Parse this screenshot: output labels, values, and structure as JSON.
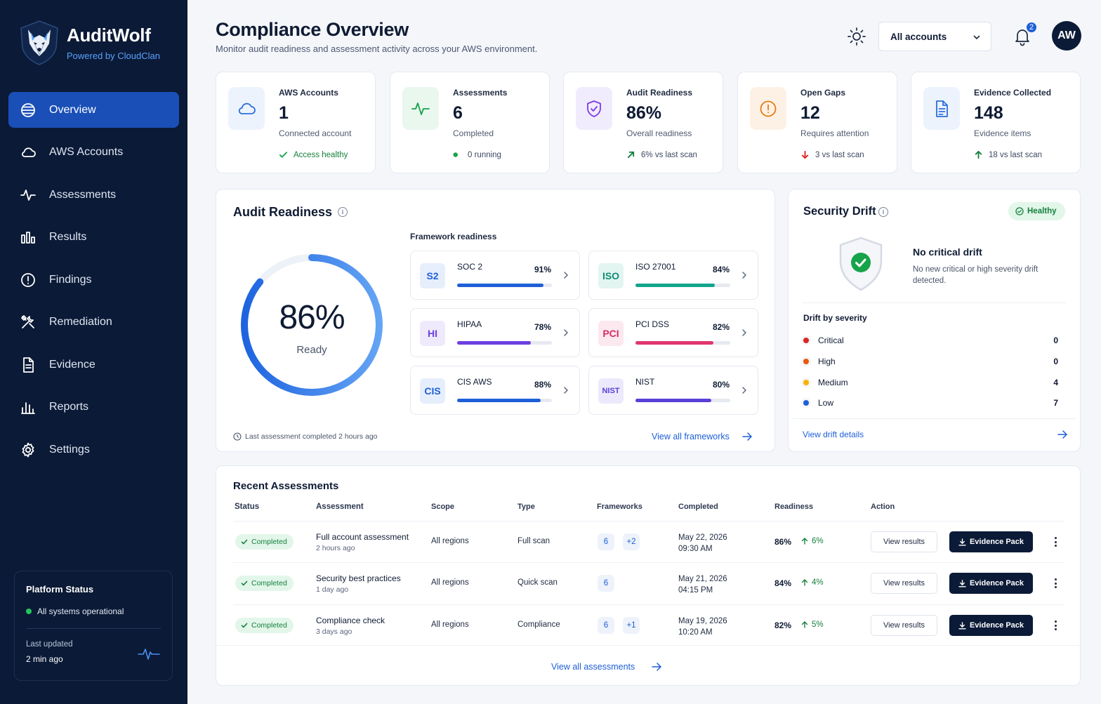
{
  "brand": {
    "name": "AuditWolf",
    "tagline": "Powered by CloudClan"
  },
  "nav": [
    {
      "label": "Overview",
      "icon": "globe-icon",
      "active": true
    },
    {
      "label": "AWS Accounts",
      "icon": "cloud-icon"
    },
    {
      "label": "Assessments",
      "icon": "activity-icon"
    },
    {
      "label": "Results",
      "icon": "bar-chart-icon"
    },
    {
      "label": "Findings",
      "icon": "alert-circle-icon"
    },
    {
      "label": "Remediation",
      "icon": "tools-icon"
    },
    {
      "label": "Evidence",
      "icon": "document-icon"
    },
    {
      "label": "Reports",
      "icon": "reports-icon"
    },
    {
      "label": "Settings",
      "icon": "gear-icon"
    }
  ],
  "platform_status": {
    "title": "Platform Status",
    "state": "All systems operational",
    "updated_label": "Last updated",
    "updated_value": "2 min ago"
  },
  "header": {
    "title": "Compliance Overview",
    "subtitle": "Monitor audit readiness and assessment activity across your AWS environment.",
    "account_select": "All accounts",
    "notification_count": "2",
    "avatar_initials": "AW"
  },
  "stats": [
    {
      "label": "AWS Accounts",
      "value": "1",
      "desc": "Connected account",
      "foot": "Access healthy",
      "icon": "cloud-icon",
      "foot_icon": "check-icon",
      "accent": "#2b6fdb",
      "bg": "#edf3fd"
    },
    {
      "label": "Assessments",
      "value": "6",
      "desc": "Completed",
      "foot": "0 running",
      "icon": "activity-icon",
      "foot_icon": "dot-icon",
      "accent": "#16a34a",
      "bg": "#e9f7ef"
    },
    {
      "label": "Audit Readiness",
      "value": "86%",
      "desc": "Overall readiness",
      "foot": "6% vs last scan",
      "icon": "shield-check-icon",
      "foot_icon": "arrow-up-right-icon",
      "accent": "#7c3aed",
      "bg": "#f1ecfd"
    },
    {
      "label": "Open Gaps",
      "value": "12",
      "desc": "Requires attention",
      "foot": "3 vs last scan",
      "icon": "alert-circle-icon",
      "foot_icon": "arrow-down-icon",
      "accent": "#ea7a13",
      "bg": "#fdf1e5"
    },
    {
      "label": "Evidence Collected",
      "value": "148",
      "desc": "Evidence items",
      "foot": "18 vs last scan",
      "icon": "document-icon",
      "foot_icon": "arrow-up-icon",
      "accent": "#2b6fdb",
      "bg": "#edf3fd"
    }
  ],
  "audit_readiness": {
    "title": "Audit Readiness",
    "value": "86%",
    "percent": 86,
    "label": "Ready",
    "frameworks_heading": "Framework readiness",
    "frameworks": [
      {
        "badge": "S2",
        "name": "SOC 2",
        "pct": "91%",
        "value": 91,
        "color": "#1e5fd8",
        "badge_bg": "#e6eefc",
        "badge_fg": "#1e5fd8"
      },
      {
        "badge": "ISO",
        "name": "ISO 27001",
        "pct": "84%",
        "value": 84,
        "color": "#13a58c",
        "badge_bg": "#e3f5f0",
        "badge_fg": "#0f8a74"
      },
      {
        "badge": "HI",
        "name": "HIPAA",
        "pct": "78%",
        "value": 78,
        "color": "#6d3fe0",
        "badge_bg": "#efe9fc",
        "badge_fg": "#6d3fe0"
      },
      {
        "badge": "PCI",
        "name": "PCI DSS",
        "pct": "82%",
        "value": 82,
        "color": "#e0356f",
        "badge_bg": "#fce8ef",
        "badge_fg": "#d62d66"
      },
      {
        "badge": "CIS",
        "name": "CIS AWS",
        "pct": "88%",
        "value": 88,
        "color": "#1e5fd8",
        "badge_bg": "#e6eefc",
        "badge_fg": "#1e5fd8"
      },
      {
        "badge": "NIST",
        "name": "NIST",
        "pct": "80%",
        "value": 80,
        "color": "#5a3fd8",
        "badge_bg": "#ece9fc",
        "badge_fg": "#5a3fd8"
      }
    ],
    "footnote": "Last assessment completed 2 hours ago",
    "view_all": "View all frameworks"
  },
  "security_drift": {
    "title": "Security Drift",
    "badge": "Healthy",
    "headline": "No critical drift",
    "description": "No new critical or high severity drift detected.",
    "severity_heading": "Drift by severity",
    "severities": [
      {
        "label": "Critical",
        "count": "0",
        "color": "#dc2626"
      },
      {
        "label": "High",
        "count": "0",
        "color": "#ea580c"
      },
      {
        "label": "Medium",
        "count": "4",
        "color": "#f5b301"
      },
      {
        "label": "Low",
        "count": "7",
        "color": "#1e5fd8"
      }
    ],
    "link": "View drift details"
  },
  "recent": {
    "title": "Recent Assessments",
    "columns": [
      "Status",
      "Assessment",
      "Scope",
      "Type",
      "Frameworks",
      "Completed",
      "Readiness",
      "Action"
    ],
    "rows": [
      {
        "status": "Completed",
        "name": "Full account assessment",
        "ago": "2 hours ago",
        "scope": "All regions",
        "type": "Full scan",
        "fw_count": "6",
        "fw_extra": "+2",
        "date": "May 22, 2026",
        "time": "09:30 AM",
        "readiness": "86%",
        "delta": "6%"
      },
      {
        "status": "Completed",
        "name": "Security best practices",
        "ago": "1 day ago",
        "scope": "All regions",
        "type": "Quick scan",
        "fw_count": "6",
        "fw_extra": "",
        "date": "May 21, 2026",
        "time": "04:15 PM",
        "readiness": "84%",
        "delta": "4%"
      },
      {
        "status": "Completed",
        "name": "Compliance check",
        "ago": "3 days ago",
        "scope": "All regions",
        "type": "Compliance",
        "fw_count": "6",
        "fw_extra": "+1",
        "date": "May 19, 2026",
        "time": "10:20 AM",
        "readiness": "82%",
        "delta": "5%"
      }
    ],
    "view_results": "View results",
    "evidence_pack": "Evidence Pack",
    "view_all": "View all assessments"
  }
}
